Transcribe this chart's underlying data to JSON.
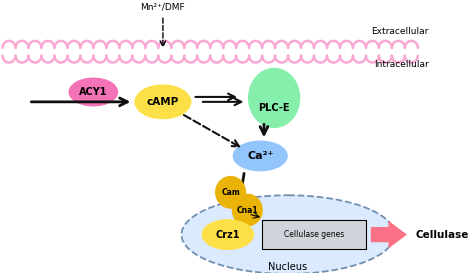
{
  "background_color": "#ffffff",
  "figsize": [
    4.74,
    2.74
  ],
  "dpi": 100,
  "extracellular_label": "Extracellular",
  "intracellular_label": "Intracellular",
  "nucleus_label": "Nucleus",
  "mn_label": "Mn²⁺/DMF",
  "acy1_label": "ACY1",
  "camp_label": "cAMP",
  "plce_label": "PLC-E",
  "ca2_label": "Ca²⁺",
  "cam_label": "Cam",
  "cna1_label": "Cna1",
  "crz1_label": "Crz1",
  "cellulase_genes_label": "Cellulase genes",
  "cellulase_label": "Cellulase",
  "acy1_color": "#f472b6",
  "camp_color": "#fde047",
  "plce_color": "#86efac",
  "ca2_color": "#93c5fd",
  "cam_color": "#eab308",
  "cna1_color": "#eab308",
  "crz1_color": "#fde047",
  "nucleus_facecolor": "#dbeafe",
  "nucleus_edgecolor": "#7090b0",
  "cellulase_genes_color": "#d1d5db",
  "cellulase_arrow_color": "#fb7185",
  "membrane_color": "#f9a8d4",
  "arrow_color": "#111111"
}
